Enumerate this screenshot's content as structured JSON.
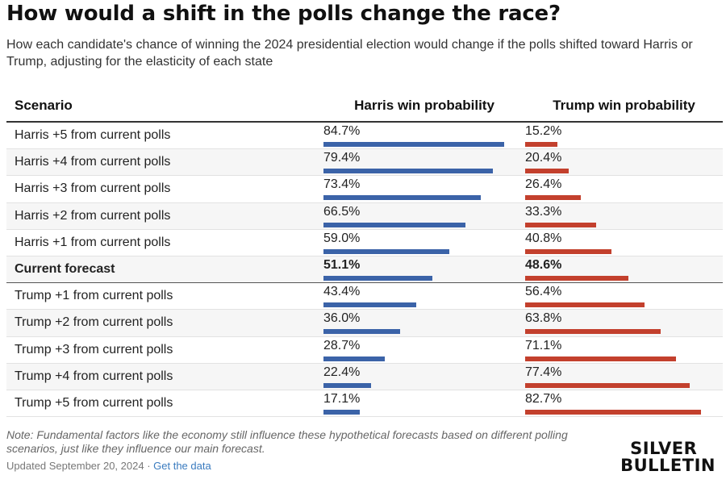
{
  "header": {
    "title": "How would a shift in the polls change the race?",
    "subtitle": "How each candidate's chance of winning the 2024 presidential election would change if the polls shifted toward Harris or Trump, adjusting for the elasticity of each state"
  },
  "chart_data": {
    "type": "table",
    "columns": [
      "Scenario",
      "Harris win probability",
      "Trump win probability"
    ],
    "colors": {
      "harris": "#3b63a8",
      "trump": "#c3402d"
    },
    "rows": [
      {
        "scenario": "Harris +5 from current polls",
        "harris_label": "84.7%",
        "trump_label": "15.2%",
        "harris": 84.7,
        "trump": 15.2
      },
      {
        "scenario": "Harris +4 from current polls",
        "harris_label": "79.4%",
        "trump_label": "20.4%",
        "harris": 79.4,
        "trump": 20.4
      },
      {
        "scenario": "Harris +3 from current polls",
        "harris_label": "73.4%",
        "trump_label": "26.4%",
        "harris": 73.4,
        "trump": 26.4
      },
      {
        "scenario": "Harris +2 from current polls",
        "harris_label": "66.5%",
        "trump_label": "33.3%",
        "harris": 66.5,
        "trump": 33.3
      },
      {
        "scenario": "Harris +1 from current polls",
        "harris_label": "59.0%",
        "trump_label": "40.8%",
        "harris": 59.0,
        "trump": 40.8
      },
      {
        "scenario": "Current forecast",
        "harris_label": "51.1%",
        "trump_label": "48.6%",
        "harris": 51.1,
        "trump": 48.6,
        "current": true
      },
      {
        "scenario": "Trump +1 from current polls",
        "harris_label": "43.4%",
        "trump_label": "56.4%",
        "harris": 43.4,
        "trump": 56.4
      },
      {
        "scenario": "Trump +2 from current polls",
        "harris_label": "36.0%",
        "trump_label": "63.8%",
        "harris": 36.0,
        "trump": 63.8
      },
      {
        "scenario": "Trump +3 from current polls",
        "harris_label": "28.7%",
        "trump_label": "71.1%",
        "harris": 28.7,
        "trump": 71.1
      },
      {
        "scenario": "Trump +4 from current polls",
        "harris_label": "22.4%",
        "trump_label": "77.4%",
        "harris": 22.4,
        "trump": 77.4
      },
      {
        "scenario": "Trump +5 from current polls",
        "harris_label": "17.1%",
        "trump_label": "82.7%",
        "harris": 17.1,
        "trump": 82.7
      }
    ]
  },
  "footer": {
    "note": "Note: Fundamental factors like the economy still influence these hypothetical forecasts based on different polling scenarios, just like they influence our main forecast.",
    "updated": "Updated September 20, 2024",
    "separator": " · ",
    "link_label": "Get the data",
    "logo_line1": "SILVER",
    "logo_line2": "BULLETIN"
  }
}
